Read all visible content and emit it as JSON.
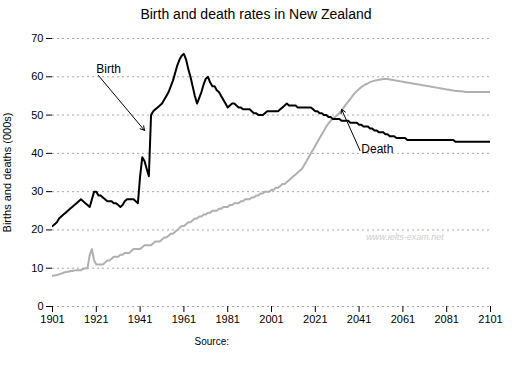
{
  "chart_data": {
    "type": "line",
    "title": "Birth and death rates in New Zealand",
    "ylabel": "Births and deaths (000s)",
    "xlim": [
      1901,
      2101
    ],
    "ylim": [
      0,
      70
    ],
    "xticks": [
      1901,
      1921,
      1941,
      1961,
      1981,
      2001,
      2021,
      2041,
      2061,
      2081,
      2101
    ],
    "yticks": [
      0,
      10,
      20,
      30,
      40,
      50,
      60,
      70
    ],
    "grid": true,
    "source": "Source:",
    "annotations": [
      {
        "text": "Birth",
        "xy": [
          1943,
          46
        ],
        "xytext": [
          1921,
          61
        ]
      },
      {
        "text": "Death",
        "xy": [
          2033,
          51.5
        ],
        "xytext": [
          2042,
          40
        ]
      },
      {
        "text": "www.ielts-exam.net",
        "xy": [
          2062,
          18
        ]
      }
    ],
    "x": [
      1901,
      1902,
      1903,
      1904,
      1905,
      1906,
      1907,
      1908,
      1909,
      1910,
      1911,
      1912,
      1913,
      1914,
      1915,
      1916,
      1917,
      1918,
      1919,
      1920,
      1921,
      1922,
      1923,
      1924,
      1925,
      1926,
      1927,
      1928,
      1929,
      1930,
      1931,
      1932,
      1933,
      1934,
      1935,
      1936,
      1937,
      1938,
      1939,
      1940,
      1941,
      1942,
      1943,
      1944,
      1945,
      1946,
      1947,
      1948,
      1949,
      1950,
      1951,
      1952,
      1953,
      1954,
      1955,
      1956,
      1957,
      1958,
      1959,
      1960,
      1961,
      1962,
      1963,
      1964,
      1965,
      1966,
      1967,
      1968,
      1969,
      1970,
      1971,
      1972,
      1973,
      1974,
      1975,
      1976,
      1977,
      1978,
      1979,
      1980,
      1981,
      1982,
      1983,
      1984,
      1985,
      1986,
      1987,
      1988,
      1989,
      1990,
      1991,
      1992,
      1993,
      1994,
      1995,
      1996,
      1997,
      1998,
      1999,
      2000,
      2001,
      2002,
      2003,
      2004,
      2005,
      2006,
      2007,
      2008,
      2009,
      2010,
      2011,
      2012,
      2013,
      2014,
      2015,
      2016,
      2017,
      2018,
      2019,
      2020,
      2021,
      2022,
      2023,
      2024,
      2025,
      2026,
      2027,
      2028,
      2029,
      2030,
      2031,
      2032,
      2033,
      2034,
      2035,
      2036,
      2037,
      2038,
      2039,
      2040,
      2041,
      2042,
      2043,
      2044,
      2045,
      2046,
      2047,
      2048,
      2049,
      2050,
      2051,
      2052,
      2053,
      2054,
      2055,
      2056,
      2057,
      2058,
      2059,
      2060,
      2061,
      2062,
      2063,
      2064,
      2065,
      2066,
      2067,
      2068,
      2069,
      2070,
      2071,
      2072,
      2073,
      2074,
      2075,
      2076,
      2077,
      2078,
      2079,
      2080,
      2081,
      2082,
      2083,
      2084,
      2085,
      2086,
      2087,
      2088,
      2089,
      2090,
      2091,
      2092,
      2093,
      2094,
      2095,
      2096,
      2097,
      2098,
      2099,
      2100,
      2101
    ],
    "series": [
      {
        "name": "Birth",
        "color": "#000000",
        "values": [
          21.0,
          21.5,
          22.0,
          23.0,
          23.5,
          24.0,
          24.5,
          25.0,
          25.5,
          26.0,
          26.5,
          27.0,
          27.5,
          28.0,
          27.5,
          27.0,
          26.5,
          26.0,
          28.0,
          30.0,
          30.0,
          29.0,
          29.0,
          28.5,
          28.0,
          27.5,
          27.5,
          27.5,
          27.0,
          27.0,
          26.5,
          26.0,
          26.5,
          27.5,
          28.0,
          28.0,
          28.0,
          28.0,
          27.5,
          27.0,
          34.0,
          39.0,
          38.0,
          36.0,
          34.0,
          50.0,
          51.0,
          51.5,
          52.0,
          52.5,
          53.0,
          54.0,
          55.0,
          56.0,
          57.5,
          59.0,
          61.0,
          63.0,
          64.5,
          65.5,
          66.0,
          64.5,
          62.0,
          60.0,
          57.5,
          55.0,
          53.0,
          54.5,
          56.0,
          58.0,
          59.5,
          60.0,
          58.5,
          57.5,
          57.5,
          56.5,
          56.0,
          55.0,
          54.0,
          53.0,
          52.0,
          52.5,
          53.0,
          53.0,
          52.5,
          52.0,
          52.0,
          51.5,
          51.5,
          51.5,
          51.5,
          51.0,
          50.5,
          50.5,
          50.0,
          50.0,
          50.0,
          50.5,
          51.0,
          51.0,
          51.0,
          51.0,
          51.0,
          51.0,
          51.5,
          52.0,
          52.5,
          53.0,
          52.5,
          52.5,
          52.5,
          52.5,
          52.0,
          52.0,
          52.0,
          52.0,
          52.0,
          52.0,
          52.0,
          51.5,
          51.0,
          51.0,
          50.5,
          50.5,
          50.0,
          50.0,
          49.5,
          49.5,
          49.0,
          49.0,
          49.0,
          49.0,
          48.5,
          48.5,
          48.5,
          48.5,
          48.0,
          48.0,
          48.0,
          48.0,
          47.5,
          47.5,
          47.0,
          47.0,
          47.0,
          46.5,
          46.5,
          46.0,
          46.0,
          45.5,
          45.5,
          45.5,
          45.0,
          45.0,
          44.5,
          44.5,
          44.5,
          44.0,
          44.0,
          44.0,
          44.0,
          44.0,
          43.5,
          43.5,
          43.5,
          43.5,
          43.5,
          43.5,
          43.5,
          43.5,
          43.5,
          43.5,
          43.5,
          43.5,
          43.5,
          43.5,
          43.5,
          43.5,
          43.5,
          43.5,
          43.5,
          43.5,
          43.5,
          43.5,
          43.0,
          43.0,
          43.0,
          43.0,
          43.0,
          43.0,
          43.0,
          43.0,
          43.0,
          43.0,
          43.0,
          43.0,
          43.0,
          43.0,
          43.0,
          43.0,
          43.0
        ]
      },
      {
        "name": "Death",
        "color": "#b0b0b0",
        "values": [
          8.0,
          8.1,
          8.2,
          8.4,
          8.6,
          8.8,
          9.0,
          9.1,
          9.2,
          9.3,
          9.4,
          9.5,
          9.5,
          9.5,
          9.8,
          10.0,
          10.0,
          13.5,
          15.0,
          12.0,
          11.0,
          11.0,
          11.0,
          11.0,
          11.5,
          12.0,
          12.0,
          12.5,
          13.0,
          13.0,
          13.0,
          13.5,
          13.5,
          14.0,
          14.0,
          14.0,
          14.5,
          15.0,
          15.0,
          15.0,
          15.0,
          15.5,
          16.0,
          16.0,
          16.0,
          16.0,
          16.5,
          17.0,
          17.0,
          17.0,
          17.5,
          18.0,
          18.0,
          18.5,
          19.0,
          19.0,
          19.5,
          20.0,
          20.5,
          21.0,
          21.0,
          21.5,
          22.0,
          22.0,
          22.5,
          23.0,
          23.0,
          23.5,
          23.5,
          24.0,
          24.0,
          24.5,
          24.5,
          25.0,
          25.0,
          25.0,
          25.5,
          25.5,
          26.0,
          26.0,
          26.0,
          26.5,
          26.5,
          27.0,
          27.0,
          27.0,
          27.5,
          27.5,
          28.0,
          28.0,
          28.0,
          28.5,
          28.5,
          29.0,
          29.0,
          29.5,
          29.5,
          30.0,
          30.0,
          30.0,
          30.5,
          30.5,
          31.0,
          31.0,
          31.5,
          32.0,
          32.0,
          32.5,
          33.0,
          33.5,
          34.0,
          34.5,
          35.0,
          35.5,
          36.0,
          37.0,
          38.0,
          39.0,
          40.0,
          41.0,
          42.0,
          43.0,
          44.0,
          45.0,
          46.0,
          47.0,
          47.8,
          48.5,
          49.0,
          49.5,
          50.0,
          50.5,
          51.2,
          52.0,
          52.8,
          53.5,
          54.2,
          55.0,
          55.7,
          56.3,
          56.8,
          57.3,
          57.7,
          58.0,
          58.3,
          58.6,
          58.8,
          59.0,
          59.1,
          59.2,
          59.3,
          59.4,
          59.4,
          59.4,
          59.3,
          59.2,
          59.1,
          59.0,
          58.9,
          58.8,
          58.7,
          58.6,
          58.5,
          58.4,
          58.3,
          58.2,
          58.1,
          58.0,
          57.9,
          57.8,
          57.7,
          57.6,
          57.5,
          57.4,
          57.3,
          57.2,
          57.1,
          57.0,
          56.9,
          56.8,
          56.7,
          56.6,
          56.5,
          56.4,
          56.3,
          56.3,
          56.2,
          56.2,
          56.1,
          56.0,
          56.0,
          56.0,
          56.0,
          56.0,
          56.0,
          56.0,
          56.0,
          56.0,
          56.0,
          56.0,
          56.0
        ]
      }
    ]
  }
}
